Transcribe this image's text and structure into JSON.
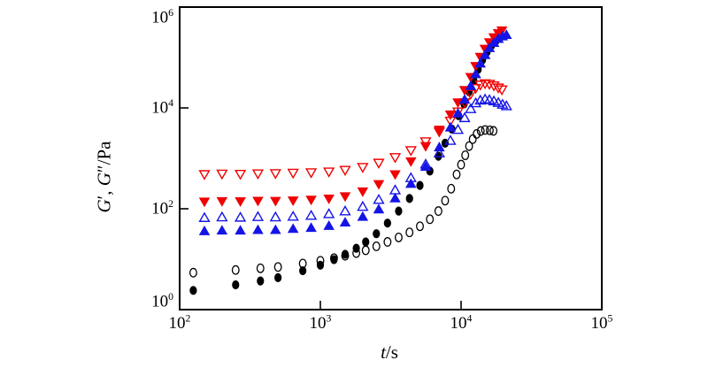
{
  "figure": {
    "background": "#ffffff",
    "frame_color": "#000000"
  },
  "chart_data": {
    "type": "scatter",
    "title": "",
    "x_scale": "log",
    "y_scale": "log",
    "grid": false,
    "legend": "none",
    "xlabel": "t/s",
    "ylabel": "G′, G″/Pa",
    "xlabel_parts": [
      {
        "style": "italic",
        "text": "t"
      },
      {
        "style": "normal",
        "text": "/s"
      }
    ],
    "ylabel_parts": [
      {
        "style": "italic",
        "text": "G"
      },
      {
        "style": "normal",
        "text": "′, "
      },
      {
        "style": "italic",
        "text": "G"
      },
      {
        "style": "normal",
        "text": "″/Pa"
      }
    ],
    "tick_base": "10",
    "xlim_exp": [
      2,
      5
    ],
    "ylim_exp": [
      0,
      6
    ],
    "x_ticks_exp": [
      2,
      3,
      4,
      5
    ],
    "y_ticks_exp": [
      0,
      2,
      4,
      6
    ],
    "draw_order": [
      "open-circles-black",
      "filled-circles-black",
      "open-triangles-down-red",
      "open-triangles-up-blue",
      "filled-triangles-down-red",
      "filled-triangles-up-blue"
    ],
    "series": [
      {
        "id": "open-circles-black",
        "label": "open circles (black)",
        "marker": "circle",
        "fill": "open",
        "color": "#000000",
        "x": [
          125,
          250,
          375,
          500,
          750,
          1000,
          1250,
          1500,
          1800,
          2100,
          2500,
          3000,
          3600,
          4300,
          5100,
          6000,
          6900,
          7700,
          8500,
          9300,
          10000,
          10700,
          11400,
          12100,
          12900,
          13800,
          14800,
          16000,
          17000
        ],
        "y": [
          5.4,
          6.1,
          6.6,
          7.0,
          8.2,
          9.3,
          10.5,
          11.7,
          13.2,
          15,
          18,
          22,
          27,
          34,
          45,
          62,
          90,
          145,
          250,
          480,
          750,
          1150,
          1750,
          2400,
          3050,
          3480,
          3650,
          3600,
          3500
        ]
      },
      {
        "id": "filled-circles-black",
        "label": "filled circles (black)",
        "marker": "circle",
        "fill": "solid",
        "color": "#000000",
        "x": [
          125,
          250,
          375,
          500,
          750,
          1000,
          1250,
          1500,
          1800,
          2100,
          2500,
          3000,
          3600,
          4300,
          5100,
          6000,
          6900,
          7700,
          8600,
          9600,
          10500,
          11400,
          12300,
          13200,
          14200,
          15300,
          16500,
          17800,
          19200
        ],
        "y": [
          2.4,
          3.1,
          3.7,
          4.3,
          5.9,
          7.6,
          9.8,
          12.5,
          16.5,
          22,
          32,
          52,
          90,
          160,
          290,
          560,
          1100,
          2000,
          3800,
          7000,
          12000,
          21000,
          35000,
          58000,
          90000,
          130000,
          175000,
          220000,
          258000
        ]
      },
      {
        "id": "open-triangles-up-blue",
        "label": "open up-triangles (blue)",
        "marker": "triangle-up",
        "fill": "open",
        "color": "#1414e6",
        "x": [
          150,
          200,
          270,
          360,
          480,
          640,
          860,
          1150,
          1500,
          2000,
          2600,
          3400,
          4400,
          5600,
          7000,
          8400,
          9500,
          10600,
          11700,
          12700,
          13700,
          14800,
          15900,
          17100,
          18400,
          19700,
          21000
        ],
        "y": [
          68,
          70,
          69,
          71,
          70,
          72,
          75,
          81,
          92,
          113,
          155,
          240,
          420,
          780,
          1300,
          2300,
          3800,
          6500,
          9800,
          12800,
          14500,
          15200,
          14800,
          14000,
          13000,
          12000,
          11200
        ]
      },
      {
        "id": "filled-triangles-up-blue",
        "label": "filled up-triangles (blue)",
        "marker": "triangle-up",
        "fill": "solid",
        "color": "#1414e6",
        "x": [
          150,
          200,
          270,
          360,
          480,
          640,
          860,
          1150,
          1500,
          2000,
          2600,
          3400,
          4400,
          5600,
          7000,
          8400,
          9500,
          10600,
          11700,
          12700,
          13700,
          14800,
          15900,
          17100,
          18400,
          19700,
          21000
        ],
        "y": [
          37,
          38,
          38,
          39,
          39,
          41,
          43,
          47,
          55,
          71,
          100,
          165,
          320,
          700,
          1700,
          4200,
          8000,
          15000,
          28000,
          48000,
          78000,
          115000,
          158000,
          200000,
          240000,
          270000,
          288000
        ]
      },
      {
        "id": "open-triangles-down-red",
        "label": "open down-triangles (red)",
        "marker": "triangle-down",
        "fill": "open",
        "color": "#f00000",
        "x": [
          150,
          200,
          270,
          360,
          480,
          640,
          860,
          1150,
          1500,
          2000,
          2600,
          3400,
          4400,
          5600,
          7000,
          8400,
          9500,
          10600,
          11700,
          12700,
          13700,
          14800,
          15900,
          17100,
          18400,
          19500
        ],
        "y": [
          470,
          480,
          475,
          485,
          490,
          500,
          510,
          530,
          570,
          650,
          790,
          1020,
          1400,
          2100,
          3300,
          5400,
          8200,
          12500,
          18500,
          24000,
          28000,
          29800,
          29000,
          27000,
          24500,
          22500
        ]
      },
      {
        "id": "filled-triangles-down-red",
        "label": "filled down-triangles (red)",
        "marker": "triangle-down",
        "fill": "solid",
        "color": "#f00000",
        "x": [
          150,
          200,
          270,
          360,
          480,
          640,
          860,
          1150,
          1500,
          2000,
          2600,
          3400,
          4400,
          5600,
          7000,
          8400,
          9500,
          10600,
          11700,
          12700,
          13700,
          14800,
          15900,
          17100,
          18400,
          19500
        ],
        "y": [
          135,
          138,
          137,
          140,
          139,
          142,
          147,
          155,
          172,
          215,
          300,
          470,
          850,
          1700,
          3600,
          7200,
          12500,
          22000,
          40000,
          66000,
          100000,
          145000,
          195000,
          245000,
          295000,
          335000
        ]
      }
    ]
  }
}
